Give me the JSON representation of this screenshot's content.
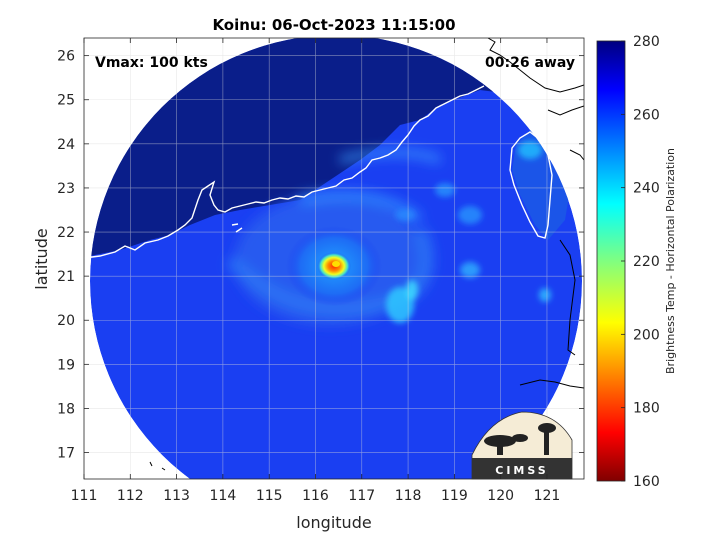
{
  "figure": {
    "title": "Koinu: 06-Oct-2023 11:15:00",
    "vmax_label": "Vmax: 100 kts",
    "away_label": "00:26 away",
    "logo_text": "CIMSS"
  },
  "map": {
    "xlabel": "longitude",
    "ylabel": "latitude",
    "xlim": [
      111,
      121.8
    ],
    "ylim": [
      16.4,
      26.4
    ],
    "x_ticks": [
      111,
      112,
      113,
      114,
      115,
      116,
      117,
      118,
      119,
      120,
      121
    ],
    "y_ticks": [
      17,
      18,
      19,
      20,
      21,
      22,
      23,
      24,
      25,
      26
    ],
    "grid": true,
    "swath": {
      "center_lon": 116.4,
      "center_lat": 21.3,
      "radius_deg": 5.4,
      "background_temp_k": 268
    },
    "storm": {
      "name": "Koinu",
      "center_lon": 116.35,
      "center_lat": 21.3,
      "min_temp_k": 185
    }
  },
  "colorbar": {
    "label": "Brightness Temp - Horizontal Polarization",
    "min": 160,
    "max": 280,
    "ticks": [
      160,
      180,
      200,
      220,
      240,
      260,
      280
    ],
    "colormap": "jet"
  },
  "colors": {
    "land_outline": "#ffffff",
    "coast_outside": "#000000",
    "ocean_base": "#1a3ff2",
    "land_cold_blue": "#0a1e8a"
  }
}
